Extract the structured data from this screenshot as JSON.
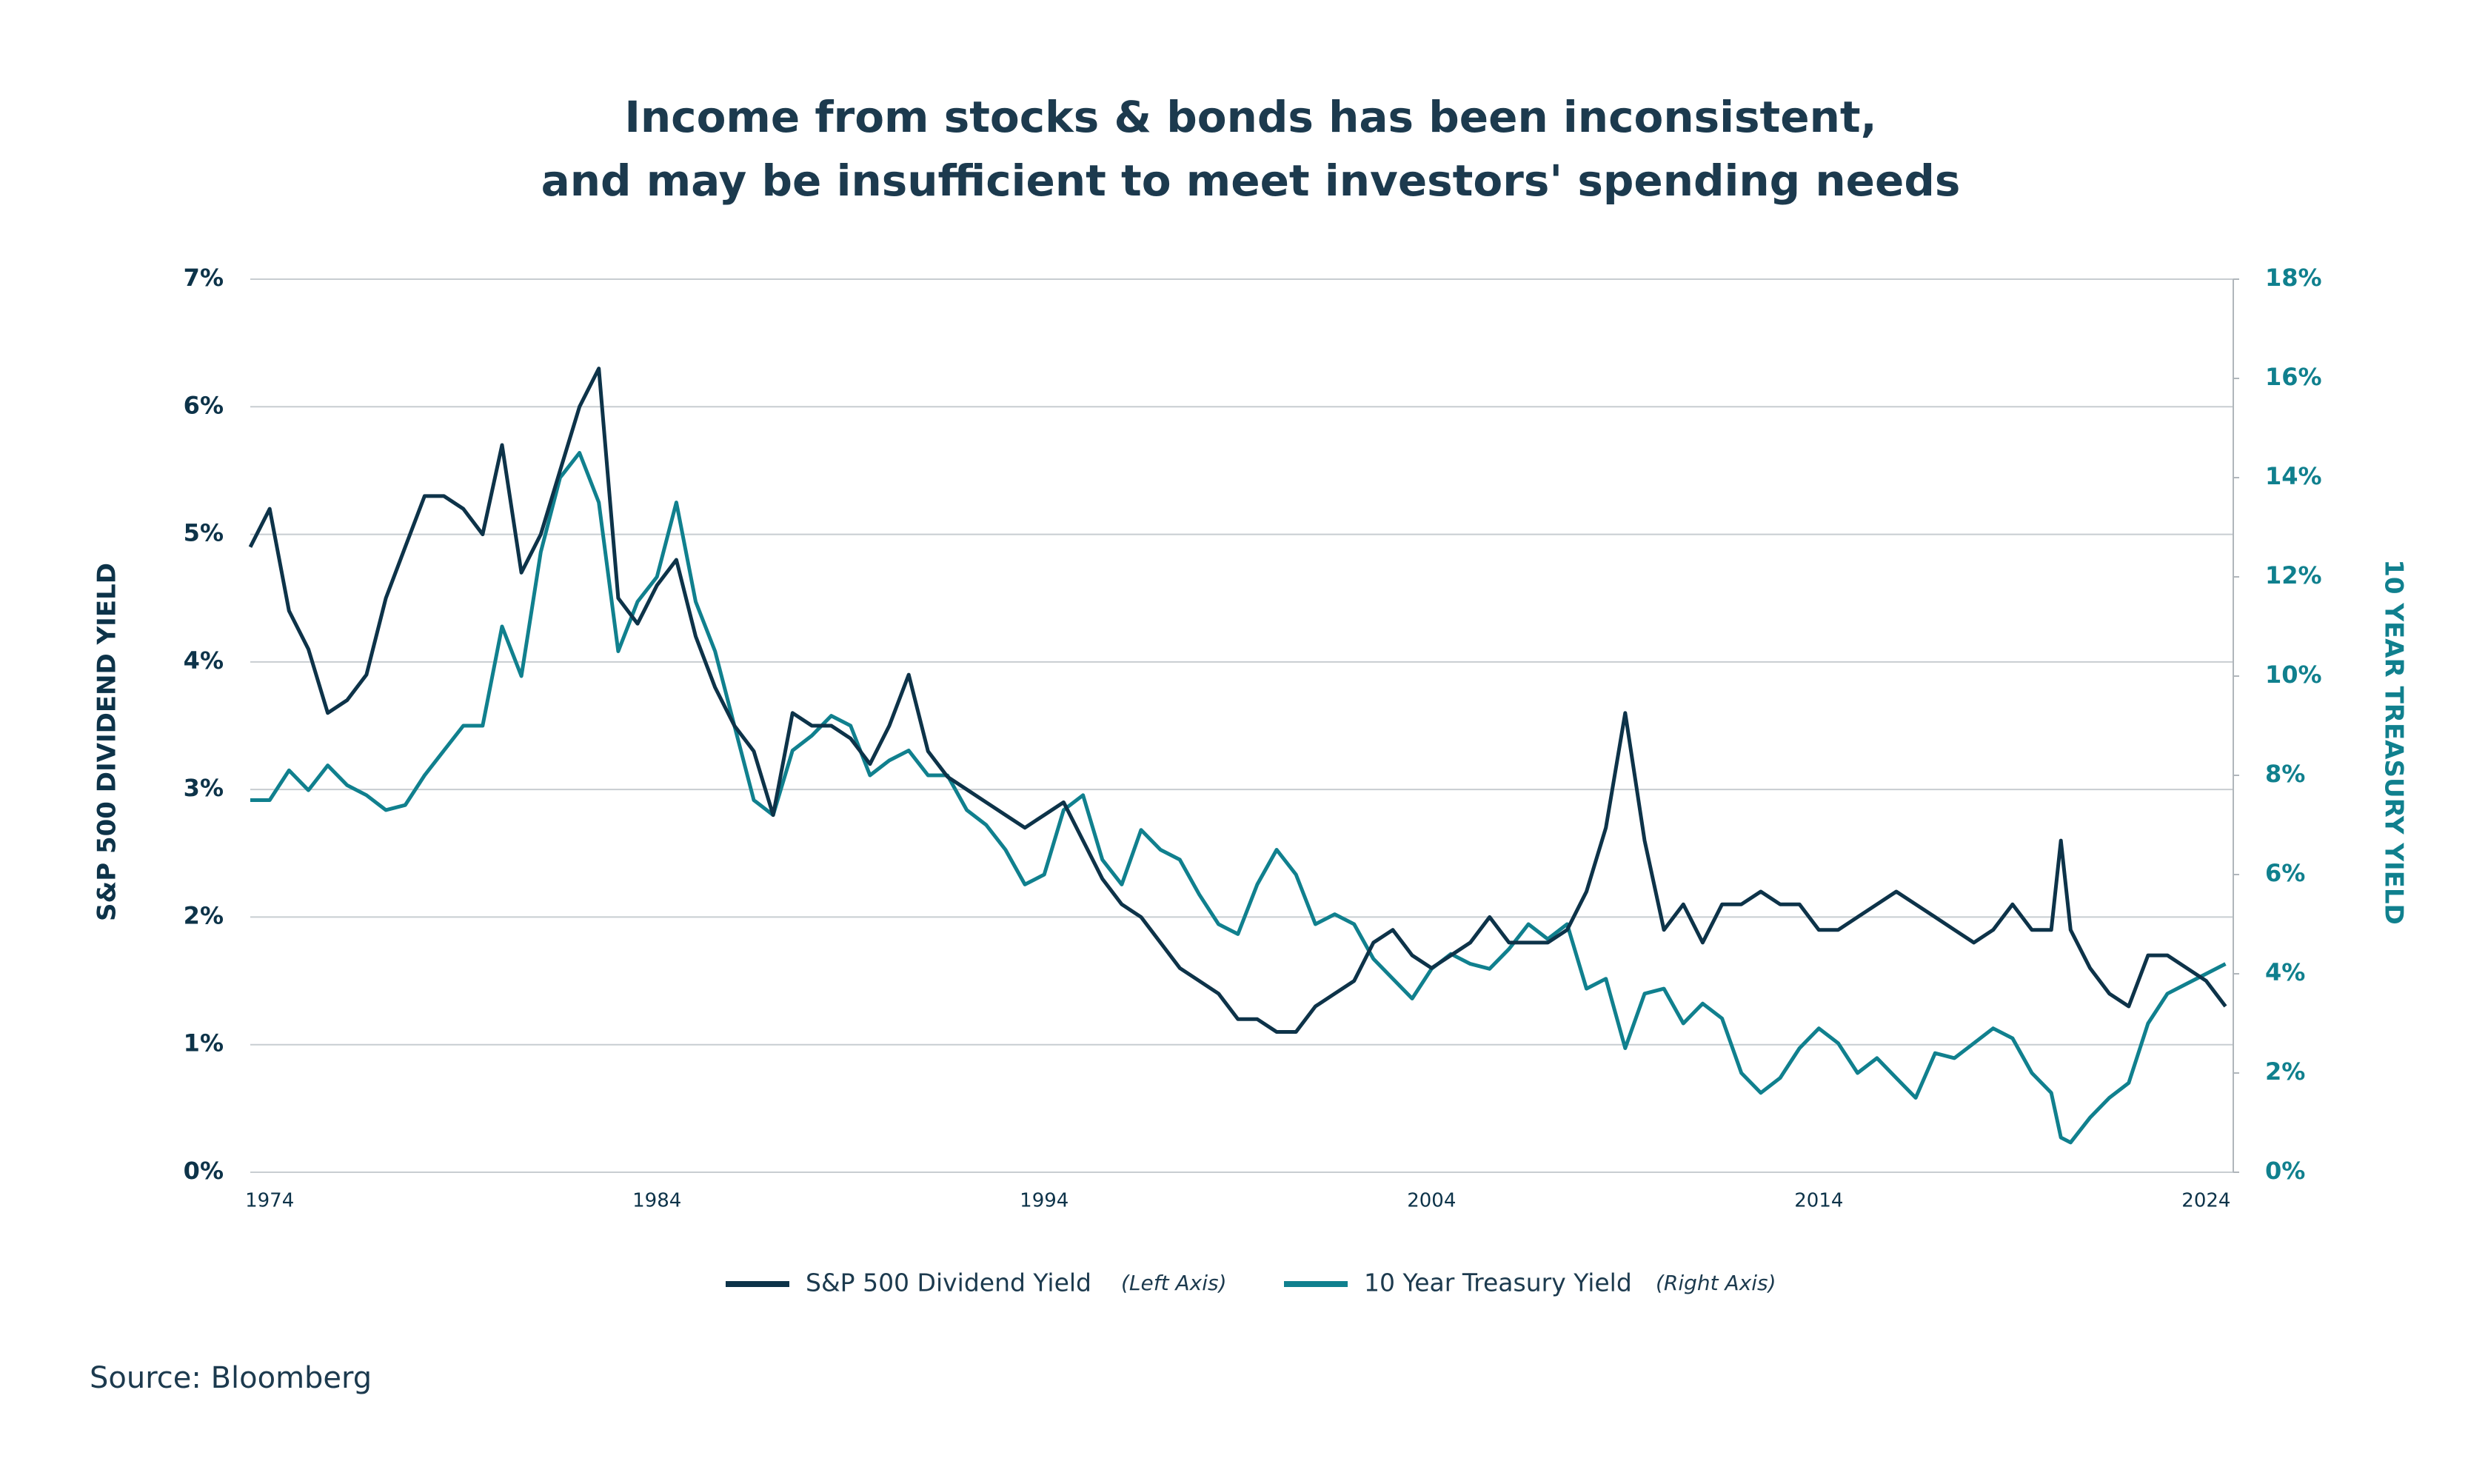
{
  "chart_data": {
    "type": "line",
    "title": [
      "Income from stocks & bonds has been inconsistent,",
      "and may be insufficient to meet investors' spending needs"
    ],
    "ylabel": "S&P 500 DIVIDEND YIELD",
    "y2label": "10 YEAR TREASURY YIELD",
    "source": "Source: Bloomberg",
    "grid": true,
    "xlim": [
      1973.5,
      2024.7
    ],
    "xticks": [
      1974,
      1984,
      1994,
      2004,
      2014,
      2024
    ],
    "ylim": [
      0,
      7
    ],
    "yticks": [
      {
        "value": 0,
        "label": "0%"
      },
      {
        "value": 1,
        "label": "1%"
      },
      {
        "value": 2,
        "label": "2%"
      },
      {
        "value": 3,
        "label": "3%"
      },
      {
        "value": 4,
        "label": "4%"
      },
      {
        "value": 5,
        "label": "5%"
      },
      {
        "value": 6,
        "label": "6%"
      },
      {
        "value": 7,
        "label": "7%"
      }
    ],
    "y2lim": [
      0,
      18
    ],
    "y2ticks": [
      {
        "value": 0,
        "label": "0%"
      },
      {
        "value": 2,
        "label": "2%"
      },
      {
        "value": 4,
        "label": "4%"
      },
      {
        "value": 6,
        "label": "6%"
      },
      {
        "value": 8,
        "label": "8%"
      },
      {
        "value": 10,
        "label": "10%"
      },
      {
        "value": 12,
        "label": "12%"
      },
      {
        "value": 14,
        "label": "14%"
      },
      {
        "value": 16,
        "label": "16%"
      },
      {
        "value": 18,
        "label": "18%"
      }
    ],
    "x": [
      1973.5,
      1974,
      1974.5,
      1975,
      1975.5,
      1976,
      1976.5,
      1977,
      1977.5,
      1978,
      1978.5,
      1979,
      1979.5,
      1980,
      1980.5,
      1981,
      1981.5,
      1982,
      1982.5,
      1983,
      1983.5,
      1984,
      1984.5,
      1985,
      1985.5,
      1986,
      1986.5,
      1987,
      1987.5,
      1988,
      1988.5,
      1989,
      1989.5,
      1990,
      1990.5,
      1991,
      1991.5,
      1992,
      1992.5,
      1993,
      1993.5,
      1994,
      1994.5,
      1995,
      1995.5,
      1996,
      1996.5,
      1997,
      1997.5,
      1998,
      1998.5,
      1999,
      1999.5,
      2000,
      2000.5,
      2001,
      2001.5,
      2002,
      2002.5,
      2003,
      2003.5,
      2004,
      2004.5,
      2005,
      2005.5,
      2006,
      2006.5,
      2007,
      2007.5,
      2008,
      2008.5,
      2009,
      2009.5,
      2010,
      2010.5,
      2011,
      2011.5,
      2012,
      2012.5,
      2013,
      2013.5,
      2014,
      2014.5,
      2015,
      2015.5,
      2016,
      2016.5,
      2017,
      2017.5,
      2018,
      2018.5,
      2019,
      2019.5,
      2020,
      2020.25,
      2020.5,
      2021,
      2021.5,
      2022,
      2022.5,
      2023,
      2023.5,
      2024,
      2024.5
    ],
    "series": [
      {
        "name": "S&P 500 Dividend Yield",
        "legend_note": "(Left Axis)",
        "color": "#0d3349",
        "values": [
          4.9,
          5.2,
          4.4,
          4.1,
          3.6,
          3.7,
          3.9,
          4.5,
          4.9,
          5.3,
          5.3,
          5.2,
          5.0,
          5.7,
          4.7,
          5.0,
          5.5,
          6.0,
          6.3,
          4.5,
          4.3,
          4.6,
          4.8,
          4.2,
          3.8,
          3.5,
          3.3,
          2.8,
          3.6,
          3.5,
          3.5,
          3.4,
          3.2,
          3.5,
          3.9,
          3.3,
          3.1,
          3.0,
          2.9,
          2.8,
          2.7,
          2.8,
          2.9,
          2.6,
          2.3,
          2.1,
          2.0,
          1.8,
          1.6,
          1.5,
          1.4,
          1.2,
          1.2,
          1.1,
          1.1,
          1.3,
          1.4,
          1.5,
          1.8,
          1.9,
          1.7,
          1.6,
          1.7,
          1.8,
          2.0,
          1.8,
          1.8,
          1.8,
          1.9,
          2.2,
          2.7,
          3.6,
          2.6,
          1.9,
          2.1,
          1.8,
          2.1,
          2.1,
          2.2,
          2.1,
          2.1,
          1.9,
          1.9,
          2.0,
          2.1,
          2.2,
          2.1,
          2.0,
          1.9,
          1.8,
          1.9,
          2.1,
          1.9,
          1.9,
          2.6,
          1.9,
          1.6,
          1.4,
          1.3,
          1.7,
          1.7,
          1.6,
          1.5,
          1.3
        ]
      },
      {
        "name": "10 Year Treasury Yield",
        "legend_note": "(Right Axis)",
        "color": "#10808e",
        "axis": "y2",
        "values": [
          7.5,
          7.5,
          8.1,
          7.7,
          8.2,
          7.8,
          7.6,
          7.3,
          7.4,
          8.0,
          8.5,
          9.0,
          9.0,
          11.0,
          10.0,
          12.5,
          14.0,
          14.5,
          13.5,
          10.5,
          11.5,
          12.0,
          13.5,
          11.5,
          10.5,
          9.0,
          7.5,
          7.2,
          8.5,
          8.8,
          9.2,
          9.0,
          8.0,
          8.3,
          8.5,
          8.0,
          8.0,
          7.3,
          7.0,
          6.5,
          5.8,
          6.0,
          7.3,
          7.6,
          6.3,
          5.8,
          6.9,
          6.5,
          6.3,
          5.6,
          5.0,
          4.8,
          5.8,
          6.5,
          6.0,
          5.0,
          5.2,
          5.0,
          4.3,
          3.9,
          3.5,
          4.1,
          4.4,
          4.2,
          4.1,
          4.5,
          5.0,
          4.7,
          5.0,
          3.7,
          3.9,
          2.5,
          3.6,
          3.7,
          3.0,
          3.4,
          3.1,
          2.0,
          1.6,
          1.9,
          2.5,
          2.9,
          2.6,
          2.0,
          2.3,
          1.9,
          1.5,
          2.4,
          2.3,
          2.6,
          2.9,
          2.7,
          2.0,
          1.6,
          0.7,
          0.6,
          1.1,
          1.5,
          1.8,
          3.0,
          3.6,
          3.8,
          4.0,
          4.2
        ]
      }
    ]
  }
}
